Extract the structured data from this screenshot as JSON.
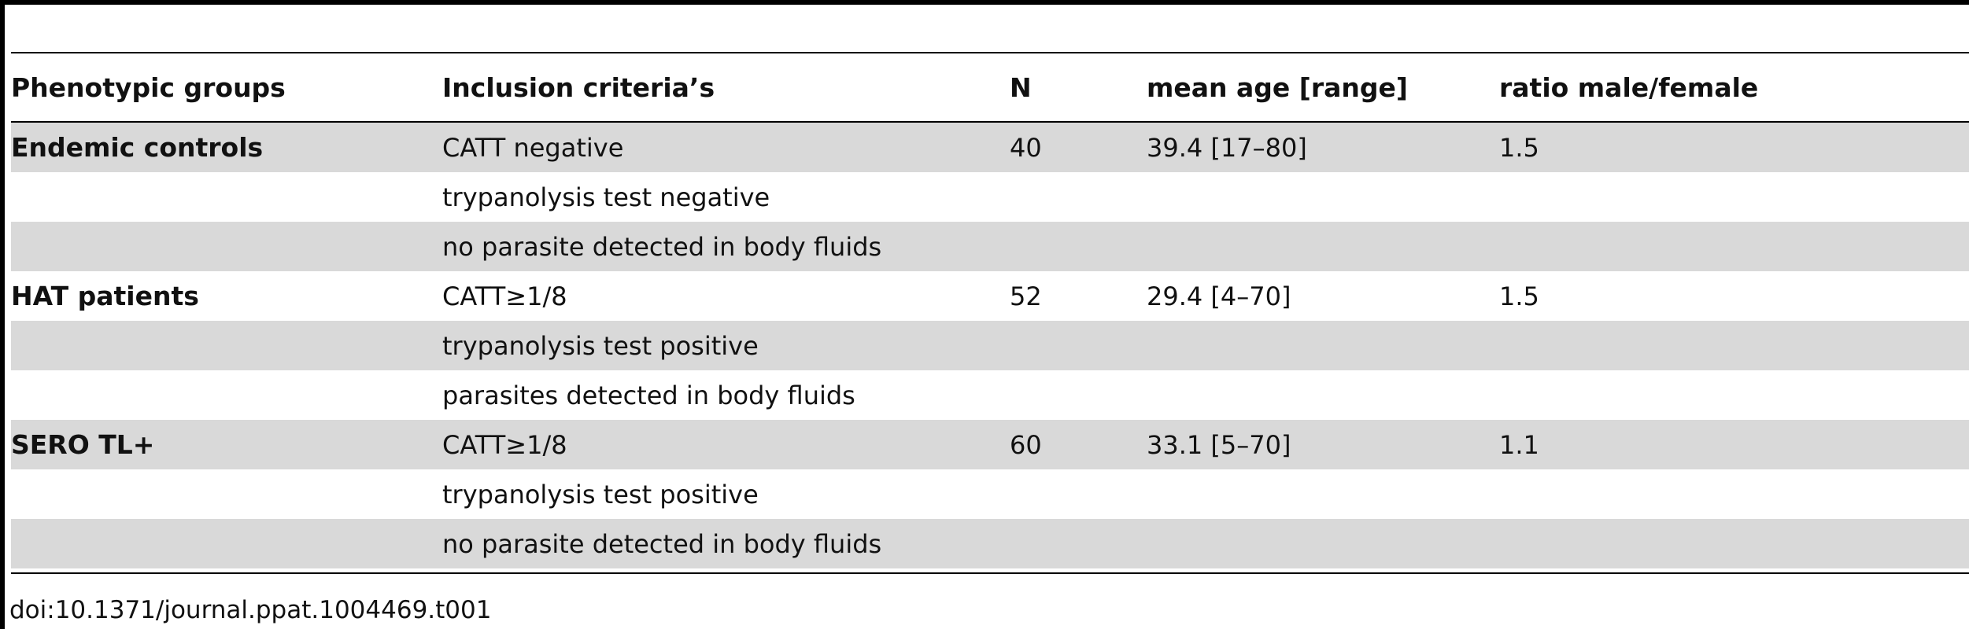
{
  "table": {
    "headers": {
      "group": "Phenotypic groups",
      "criteria": "Inclusion criteria’s",
      "n": "N",
      "mean_age": "mean age [range]",
      "ratio": "ratio male/female"
    },
    "rows": [
      {
        "group": "Endemic controls",
        "criteria": "CATT negative",
        "n": "40",
        "mean_age": "39.4 [17–80]",
        "ratio": "1.5"
      },
      {
        "group": "",
        "criteria": "trypanolysis test negative",
        "n": "",
        "mean_age": "",
        "ratio": ""
      },
      {
        "group": "",
        "criteria": "no parasite detected in body fluids",
        "n": "",
        "mean_age": "",
        "ratio": ""
      },
      {
        "group": "HAT patients",
        "criteria": "CATT≥1/8",
        "n": "52",
        "mean_age": "29.4 [4–70]",
        "ratio": "1.5"
      },
      {
        "group": "",
        "criteria": "trypanolysis test positive",
        "n": "",
        "mean_age": "",
        "ratio": ""
      },
      {
        "group": "",
        "criteria": "parasites detected in body fluids",
        "n": "",
        "mean_age": "",
        "ratio": ""
      },
      {
        "group": "SERO TL+",
        "criteria": "CATT≥1/8",
        "n": "60",
        "mean_age": "33.1 [5–70]",
        "ratio": "1.1"
      },
      {
        "group": "",
        "criteria": "trypanolysis test positive",
        "n": "",
        "mean_age": "",
        "ratio": ""
      },
      {
        "group": "",
        "criteria": "no parasite detected in body fluids",
        "n": "",
        "mean_age": "",
        "ratio": ""
      }
    ]
  },
  "colors": {
    "shaded_row": "#d9d9d9",
    "rule": "#000000"
  },
  "footnote": "doi:10.1371/journal.ppat.1004469.t001"
}
